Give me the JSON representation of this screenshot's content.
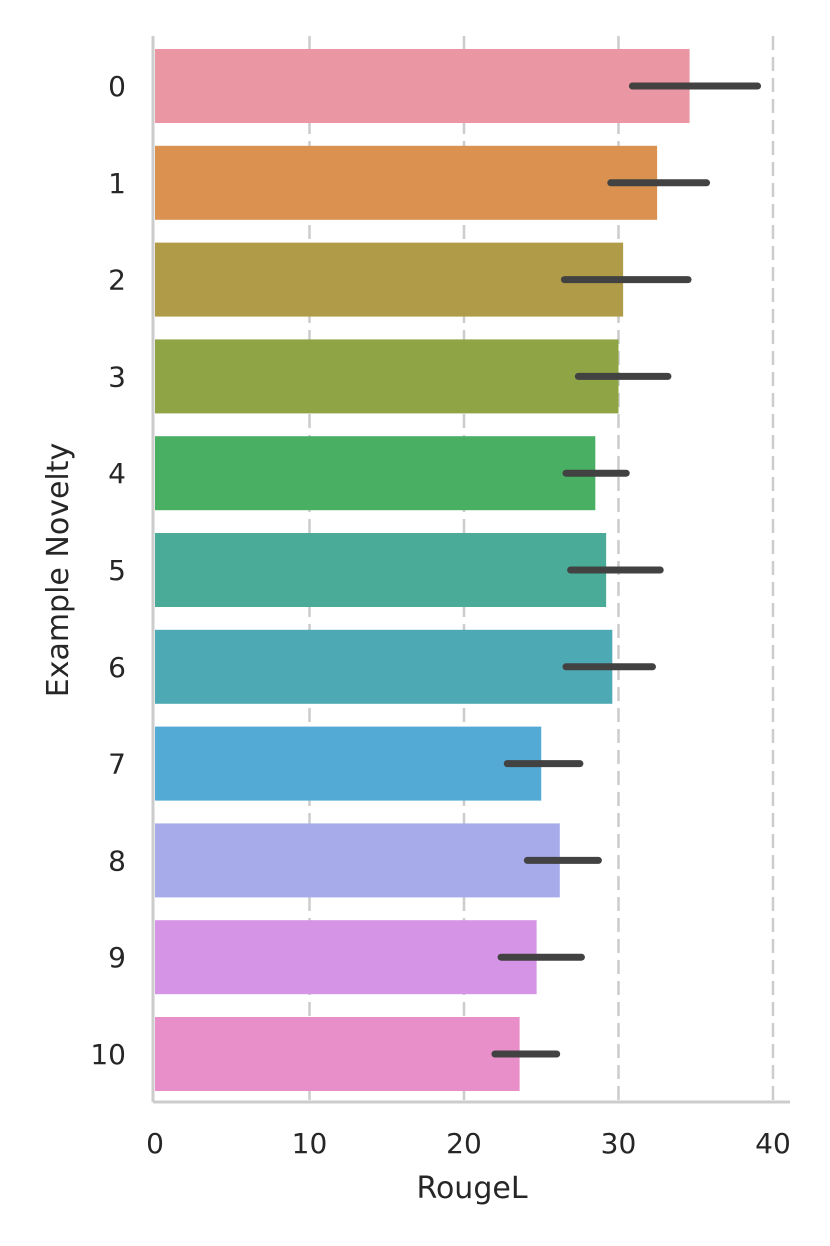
{
  "chart_data": {
    "type": "bar",
    "orientation": "horizontal",
    "title": "",
    "xlabel": "RougeL",
    "ylabel": "Example Novelty",
    "xlim": [
      0,
      41
    ],
    "xticks": [
      0,
      10,
      20,
      30,
      40
    ],
    "grid": "vertical dashed",
    "legend": "none",
    "categories": [
      "0",
      "1",
      "2",
      "3",
      "4",
      "5",
      "6",
      "7",
      "8",
      "9",
      "10"
    ],
    "values": [
      34.6,
      32.5,
      30.3,
      30.0,
      28.5,
      29.2,
      29.6,
      25.0,
      26.2,
      24.7,
      23.6
    ],
    "error_low": [
      30.9,
      29.5,
      26.5,
      27.4,
      26.6,
      26.9,
      26.6,
      22.8,
      24.1,
      22.4,
      22.0
    ],
    "error_high": [
      39.0,
      35.7,
      34.5,
      33.2,
      30.5,
      32.7,
      32.2,
      27.5,
      28.7,
      27.6,
      26.0
    ],
    "colors": [
      "#ea96a3",
      "#db914f",
      "#b09c48",
      "#8ea445",
      "#49af63",
      "#4aac98",
      "#4daab4",
      "#53aad4",
      "#a8abe9",
      "#d694e6",
      "#e88fca"
    ]
  }
}
